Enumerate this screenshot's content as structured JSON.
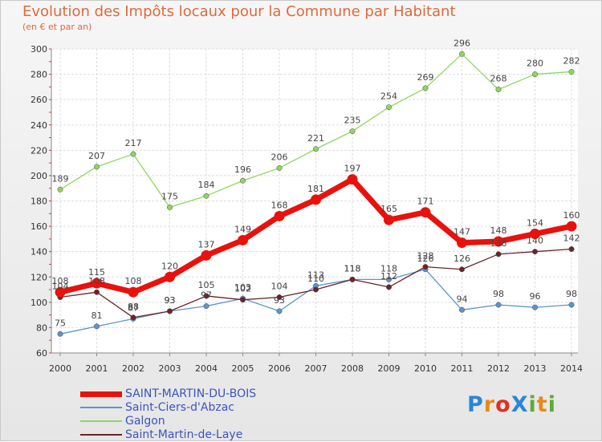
{
  "title": "Evolution des Impôts locaux pour la Commune par Habitant",
  "subtitle": "(en € et par an)",
  "logo": {
    "text": "ProXiti",
    "colors": [
      "#2a86d6",
      "#e68a1c",
      "#e0301e",
      "#2a86d6",
      "#5aae32",
      "#e68a1c",
      "#5aae32"
    ]
  },
  "chart_data": {
    "type": "line",
    "title": "Evolution des Impôts locaux pour la Commune par Habitant",
    "subtitle": "(en € et par an)",
    "xlabel": "",
    "ylabel": "",
    "ylim": [
      60,
      300
    ],
    "ytick_step": 20,
    "grid": true,
    "legend_position": "bottom-left",
    "categories": [
      "2000",
      "2001",
      "2002",
      "2003",
      "2004",
      "2005",
      "2006",
      "2007",
      "2008",
      "2009",
      "2010",
      "2011",
      "2012",
      "2013",
      "2014"
    ],
    "series": [
      {
        "name": "SAINT-MARTIN-DU-BOIS",
        "color": "#e8120d",
        "emphasis": true,
        "values": [
          108,
          115,
          108,
          120,
          137,
          149,
          168,
          181,
          197,
          165,
          171,
          147,
          148,
          154,
          160
        ]
      },
      {
        "name": "Saint-Ciers-d'Abzac",
        "color": "#5b94cf",
        "emphasis": false,
        "values": [
          75,
          81,
          87,
          93,
          97,
          103,
          93,
          113,
          118,
          118,
          126,
          94,
          98,
          96,
          98
        ]
      },
      {
        "name": "Galgon",
        "color": "#8fd660",
        "emphasis": false,
        "values": [
          189,
          207,
          217,
          175,
          184,
          196,
          206,
          221,
          235,
          254,
          269,
          296,
          268,
          280,
          282
        ]
      },
      {
        "name": "Saint-Martin-de-Laye",
        "color": "#6b2428",
        "emphasis": false,
        "values": [
          104,
          108,
          88,
          93,
          105,
          102,
          104,
          110,
          118,
          112,
          128,
          126,
          138,
          140,
          142
        ]
      }
    ]
  }
}
